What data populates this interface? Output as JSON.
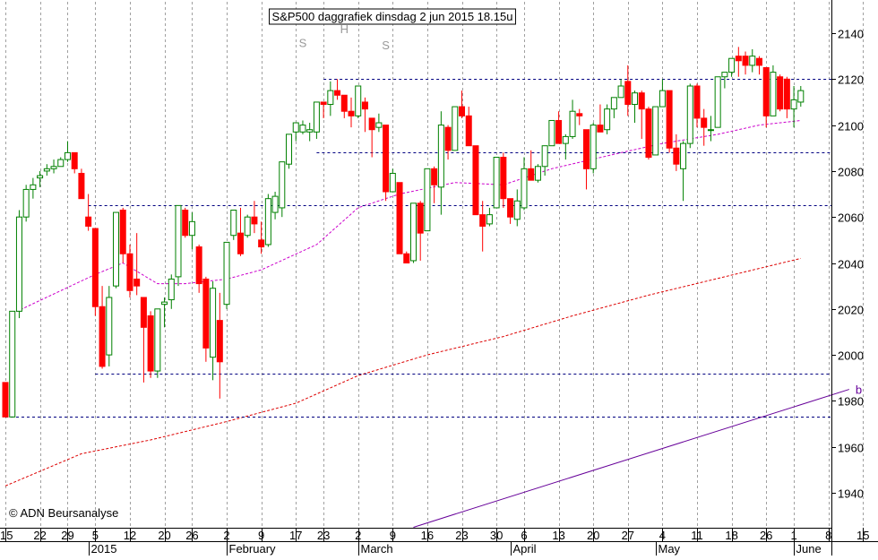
{
  "chart_data": {
    "type": "candlestick",
    "title": "S&P500 daggrafiek dinsdag 2 jun 2015 18.15u",
    "watermark": "© ADN Beursanalyse",
    "y_axis": {
      "ylim": [
        1926,
        2150
      ],
      "ticks": [
        1940,
        1960,
        1980,
        2000,
        2020,
        2040,
        2060,
        2080,
        2100,
        2120,
        2140
      ],
      "position": "right"
    },
    "x_axis": {
      "days": [
        "2014-12-15",
        "2014-12-16",
        "2014-12-17",
        "2014-12-18",
        "2014-12-19",
        "2014-12-22",
        "2014-12-23",
        "2014-12-24",
        "2014-12-26",
        "2014-12-29",
        "2014-12-30",
        "2014-12-31",
        "2015-01-02",
        "2015-01-05",
        "2015-01-06",
        "2015-01-07",
        "2015-01-08",
        "2015-01-09",
        "2015-01-12",
        "2015-01-13",
        "2015-01-14",
        "2015-01-15",
        "2015-01-16",
        "2015-01-20",
        "2015-01-21",
        "2015-01-22",
        "2015-01-23",
        "2015-01-26",
        "2015-01-27",
        "2015-01-28",
        "2015-01-29",
        "2015-01-30",
        "2015-02-02",
        "2015-02-03",
        "2015-02-04",
        "2015-02-05",
        "2015-02-06",
        "2015-02-09",
        "2015-02-10",
        "2015-02-11",
        "2015-02-12",
        "2015-02-13",
        "2015-02-17",
        "2015-02-18",
        "2015-02-19",
        "2015-02-20",
        "2015-02-23",
        "2015-02-24",
        "2015-02-25",
        "2015-02-26",
        "2015-02-27",
        "2015-03-02",
        "2015-03-03",
        "2015-03-04",
        "2015-03-05",
        "2015-03-06",
        "2015-03-09",
        "2015-03-10",
        "2015-03-11",
        "2015-03-12",
        "2015-03-13",
        "2015-03-16",
        "2015-03-17",
        "2015-03-18",
        "2015-03-19",
        "2015-03-20",
        "2015-03-23",
        "2015-03-24",
        "2015-03-25",
        "2015-03-26",
        "2015-03-27",
        "2015-03-30",
        "2015-03-31",
        "2015-04-01",
        "2015-04-02",
        "2015-04-06",
        "2015-04-07",
        "2015-04-08",
        "2015-04-09",
        "2015-04-10",
        "2015-04-13",
        "2015-04-14",
        "2015-04-15",
        "2015-04-16",
        "2015-04-17",
        "2015-04-20",
        "2015-04-21",
        "2015-04-22",
        "2015-04-23",
        "2015-04-24",
        "2015-04-27",
        "2015-04-28",
        "2015-04-29",
        "2015-04-30",
        "2015-05-01",
        "2015-05-04",
        "2015-05-05",
        "2015-05-06",
        "2015-05-07",
        "2015-05-08",
        "2015-05-11",
        "2015-05-12",
        "2015-05-13",
        "2015-05-14",
        "2015-05-15",
        "2015-05-18",
        "2015-05-19",
        "2015-05-20",
        "2015-05-21",
        "2015-05-22",
        "2015-05-26",
        "2015-05-27",
        "2015-05-28",
        "2015-05-29",
        "2015-06-01",
        "2015-06-02"
      ],
      "day_tick_labels": [
        {
          "date": "2014-12-15",
          "label": "15"
        },
        {
          "date": "2014-12-22",
          "label": "22"
        },
        {
          "date": "2014-12-29",
          "label": "29"
        },
        {
          "date": "2015-01-05",
          "label": "5"
        },
        {
          "date": "2015-01-12",
          "label": "12"
        },
        {
          "date": "2015-01-20",
          "label": "20"
        },
        {
          "date": "2015-01-26",
          "label": "26"
        },
        {
          "date": "2015-02-02",
          "label": "2"
        },
        {
          "date": "2015-02-09",
          "label": "9"
        },
        {
          "date": "2015-02-17",
          "label": "17"
        },
        {
          "date": "2015-02-23",
          "label": "23"
        },
        {
          "date": "2015-03-02",
          "label": "2"
        },
        {
          "date": "2015-03-09",
          "label": "9"
        },
        {
          "date": "2015-03-16",
          "label": "16"
        },
        {
          "date": "2015-03-23",
          "label": "23"
        },
        {
          "date": "2015-03-30",
          "label": "30"
        },
        {
          "date": "2015-04-06",
          "label": "6"
        },
        {
          "date": "2015-04-13",
          "label": "13"
        },
        {
          "date": "2015-04-20",
          "label": "20"
        },
        {
          "date": "2015-04-27",
          "label": "27"
        },
        {
          "date": "2015-05-04",
          "label": "4"
        },
        {
          "date": "2015-05-11",
          "label": "11"
        },
        {
          "date": "2015-05-18",
          "label": "18"
        },
        {
          "date": "2015-05-26",
          "label": "26"
        },
        {
          "date": "2015-06-01",
          "label": "1"
        },
        {
          "date": "2015-06-08",
          "label": "8"
        },
        {
          "date": "2015-06-15",
          "label": "15"
        }
      ],
      "month_labels": [
        {
          "date": "2015-01-02",
          "label": "2015"
        },
        {
          "date": "2015-02-02",
          "label": "February"
        },
        {
          "date": "2015-03-02",
          "label": "March"
        },
        {
          "date": "2015-04-01",
          "label": "April"
        },
        {
          "date": "2015-05-01",
          "label": "May"
        },
        {
          "date": "2015-06-01",
          "label": "June"
        }
      ]
    },
    "candles": [
      [
        1988,
        1988,
        1973,
        1973
      ],
      [
        1973,
        2019,
        1973,
        2019
      ],
      [
        2019,
        2063,
        2016,
        2060
      ],
      [
        2060,
        2074,
        2058,
        2072
      ],
      [
        2072,
        2077,
        2068,
        2074
      ],
      [
        2077,
        2080,
        2073,
        2078
      ],
      [
        2080,
        2083,
        2078,
        2081
      ],
      [
        2081,
        2085,
        2079,
        2082
      ],
      [
        2082,
        2086,
        2082,
        2085
      ],
      [
        2085,
        2093,
        2084,
        2088
      ],
      [
        2088,
        2088,
        2079,
        2081
      ],
      [
        2079,
        2081,
        2068,
        2068
      ],
      [
        2060,
        2070,
        2054,
        2056
      ],
      [
        2055,
        2055,
        2017,
        2021
      ],
      [
        2021,
        2030,
        1994,
        1995
      ],
      [
        2000,
        2030,
        1995,
        2025
      ],
      [
        2030,
        2062,
        2029,
        2062
      ],
      [
        2063,
        2064,
        2040,
        2044
      ],
      [
        2044,
        2048,
        2025,
        2028
      ],
      [
        2033,
        2053,
        2026,
        2030
      ],
      [
        2025,
        2025,
        1988,
        2012
      ],
      [
        2017,
        2019,
        1990,
        1993
      ],
      [
        1993,
        2020,
        1990,
        2020
      ],
      [
        2022,
        2025,
        2012,
        2023
      ],
      [
        2024,
        2035,
        2020,
        2033
      ],
      [
        2034,
        2065,
        2030,
        2065
      ],
      [
        2063,
        2064,
        2051,
        2052
      ],
      [
        2052,
        2062,
        2046,
        2058
      ],
      [
        2047,
        2048,
        2027,
        2031
      ],
      [
        2033,
        2034,
        1997,
        2003
      ],
      [
        1999,
        2032,
        1989,
        2029
      ],
      [
        2015,
        2027,
        1981,
        1997
      ],
      [
        2022,
        2049,
        2020,
        2049
      ],
      [
        2052,
        2063,
        2050,
        2063
      ],
      [
        2053,
        2064,
        2043,
        2044
      ],
      [
        2052,
        2061,
        2051,
        2060
      ],
      [
        2060,
        2067,
        2053,
        2057
      ],
      [
        2050,
        2058,
        2044,
        2047
      ],
      [
        2048,
        2070,
        2047,
        2068
      ],
      [
        2062,
        2071,
        2059,
        2069
      ],
      [
        2064,
        2083,
        2060,
        2084
      ],
      [
        2083,
        2096,
        2081,
        2096
      ],
      [
        2097,
        2101,
        2093,
        2101
      ],
      [
        2097,
        2102,
        2096,
        2100
      ],
      [
        2097,
        2101,
        2093,
        2098
      ],
      [
        2097,
        2110,
        2094,
        2110
      ],
      [
        2110,
        2110,
        2103,
        2109
      ],
      [
        2109,
        2119,
        2104,
        2115
      ],
      [
        2115,
        2120,
        2111,
        2113
      ],
      [
        2113,
        2113,
        2103,
        2106
      ],
      [
        2106,
        2112,
        2099,
        2104
      ],
      [
        2104,
        2117,
        2103,
        2117
      ],
      [
        2110,
        2112,
        2097,
        2107
      ],
      [
        2103,
        2103,
        2086,
        2098
      ],
      [
        2099,
        2105,
        2097,
        2101
      ],
      [
        2100,
        2100,
        2067,
        2071
      ],
      [
        2071,
        2081,
        2071,
        2079
      ],
      [
        2075,
        2075,
        2044,
        2044
      ],
      [
        2044,
        2045,
        2040,
        2040
      ],
      [
        2041,
        2066,
        2040,
        2066
      ],
      [
        2066,
        2067,
        2041,
        2053
      ],
      [
        2054,
        2081,
        2054,
        2081
      ],
      [
        2081,
        2082,
        2066,
        2074
      ],
      [
        2073,
        2106,
        2061,
        2100
      ],
      [
        2099,
        2100,
        2085,
        2089
      ],
      [
        2089,
        2108,
        2089,
        2108
      ],
      [
        2108,
        2115,
        2103,
        2104
      ],
      [
        2104,
        2108,
        2091,
        2091
      ],
      [
        2091,
        2091,
        2061,
        2061
      ],
      [
        2061,
        2067,
        2045,
        2056
      ],
      [
        2057,
        2064,
        2056,
        2061
      ],
      [
        2064,
        2086,
        2064,
        2086
      ],
      [
        2086,
        2088,
        2064,
        2068
      ],
      [
        2068,
        2068,
        2057,
        2060
      ],
      [
        2059,
        2072,
        2056,
        2067
      ],
      [
        2064,
        2086,
        2063,
        2081
      ],
      [
        2081,
        2089,
        2076,
        2076
      ],
      [
        2076,
        2083,
        2075,
        2082
      ],
      [
        2082,
        2091,
        2078,
        2091
      ],
      [
        2091,
        2102,
        2091,
        2102
      ],
      [
        2102,
        2106,
        2092,
        2092
      ],
      [
        2092,
        2096,
        2085,
        2095
      ],
      [
        2095,
        2111,
        2094,
        2106
      ],
      [
        2105,
        2107,
        2100,
        2104
      ],
      [
        2098,
        2098,
        2072,
        2081
      ],
      [
        2081,
        2101,
        2079,
        2100
      ],
      [
        2100,
        2109,
        2097,
        2097
      ],
      [
        2098,
        2109,
        2096,
        2107
      ],
      [
        2107,
        2112,
        2103,
        2112
      ],
      [
        2112,
        2120,
        2112,
        2117
      ],
      [
        2119,
        2126,
        2104,
        2109
      ],
      [
        2109,
        2115,
        2101,
        2114
      ],
      [
        2114,
        2115,
        2094,
        2107
      ],
      [
        2107,
        2108,
        2085,
        2086
      ],
      [
        2087,
        2108,
        2087,
        2108
      ],
      [
        2108,
        2120,
        2108,
        2115
      ],
      [
        2115,
        2115,
        2088,
        2090
      ],
      [
        2090,
        2096,
        2080,
        2083
      ],
      [
        2081,
        2093,
        2067,
        2092
      ],
      [
        2092,
        2118,
        2090,
        2117
      ],
      [
        2117,
        2118,
        2099,
        2103
      ],
      [
        2103,
        2107,
        2091,
        2099
      ],
      [
        2098,
        2104,
        2093,
        2098
      ],
      [
        2099,
        2121,
        2099,
        2121
      ],
      [
        2121,
        2123,
        2116,
        2123
      ],
      [
        2123,
        2129,
        2121,
        2129
      ],
      [
        2130,
        2134,
        2121,
        2128
      ],
      [
        2130,
        2132,
        2122,
        2126
      ],
      [
        2126,
        2133,
        2123,
        2130
      ],
      [
        2129,
        2130,
        2122,
        2126
      ],
      [
        2125,
        2125,
        2099,
        2104
      ],
      [
        2104,
        2126,
        2104,
        2123
      ],
      [
        2121,
        2122,
        2106,
        2107
      ],
      [
        2120,
        2121,
        2103,
        2107
      ],
      [
        2107,
        2117,
        2099,
        2111
      ],
      [
        2110,
        2117,
        2108,
        2115
      ]
    ],
    "candle_fields": [
      "open",
      "high",
      "low",
      "close"
    ],
    "ma_short": {
      "color": "#cc00cc",
      "points": [
        [
          "2014-12-16",
          2018
        ],
        [
          "2015-01-05",
          2035
        ],
        [
          "2015-01-09",
          2040
        ],
        [
          "2015-01-16",
          2031
        ],
        [
          "2015-01-23",
          2031
        ],
        [
          "2015-02-02",
          2033
        ],
        [
          "2015-02-09",
          2037
        ],
        [
          "2015-02-20",
          2048
        ],
        [
          "2015-03-02",
          2064
        ],
        [
          "2015-03-10",
          2070
        ],
        [
          "2015-03-20",
          2075
        ],
        [
          "2015-03-31",
          2074
        ],
        [
          "2015-04-10",
          2081
        ],
        [
          "2015-04-24",
          2088
        ],
        [
          "2015-05-04",
          2092
        ],
        [
          "2015-05-14",
          2096
        ],
        [
          "2015-05-22",
          2100
        ],
        [
          "2015-06-02",
          2102
        ]
      ]
    },
    "ma_long": {
      "color": "#dd0000",
      "points": [
        [
          "2014-12-15",
          1943
        ],
        [
          "2014-12-31",
          1957
        ],
        [
          "2015-01-15",
          1963
        ],
        [
          "2015-02-02",
          1971
        ],
        [
          "2015-02-17",
          1979
        ],
        [
          "2015-03-02",
          1991
        ],
        [
          "2015-03-16",
          2000
        ],
        [
          "2015-03-31",
          2008
        ],
        [
          "2015-04-15",
          2017
        ],
        [
          "2015-04-30",
          2026
        ],
        [
          "2015-05-15",
          2034
        ],
        [
          "2015-06-02",
          2042
        ]
      ]
    },
    "horizontal_lines": [
      {
        "y": 2120,
        "from": "2015-02-23",
        "color": "#000080"
      },
      {
        "y": 2088,
        "from": "2015-02-20",
        "color": "#000080"
      },
      {
        "y": 2065,
        "from": "2015-01-02",
        "color": "#000080"
      },
      {
        "y": 1992,
        "from": "2015-01-05",
        "color": "#000080"
      },
      {
        "y": 1973,
        "from": "2014-12-15",
        "color": "#000080"
      }
    ],
    "trendline": {
      "color": "#660099",
      "from": [
        "2015-03-12",
        1925
      ],
      "to": [
        "2015-06-11",
        1985
      ],
      "label": "b"
    },
    "pattern_labels": [
      {
        "label": "S",
        "date": "2015-02-18",
        "y": 2134
      },
      {
        "label": "H",
        "date": "2015-02-26",
        "y": 2140
      },
      {
        "label": "S",
        "date": "2015-03-06",
        "y": 2133
      }
    ],
    "colors": {
      "up_body": "#ffffff",
      "up_outline": "#008000",
      "down_body": "#ff0000",
      "down_outline": "#ff0000",
      "vertical_grid": "#a0a0a0",
      "horizontal_line": "#000080",
      "axis": "#000000"
    },
    "grid": {
      "vertical": true,
      "horizontal": false
    },
    "legend": "none"
  }
}
